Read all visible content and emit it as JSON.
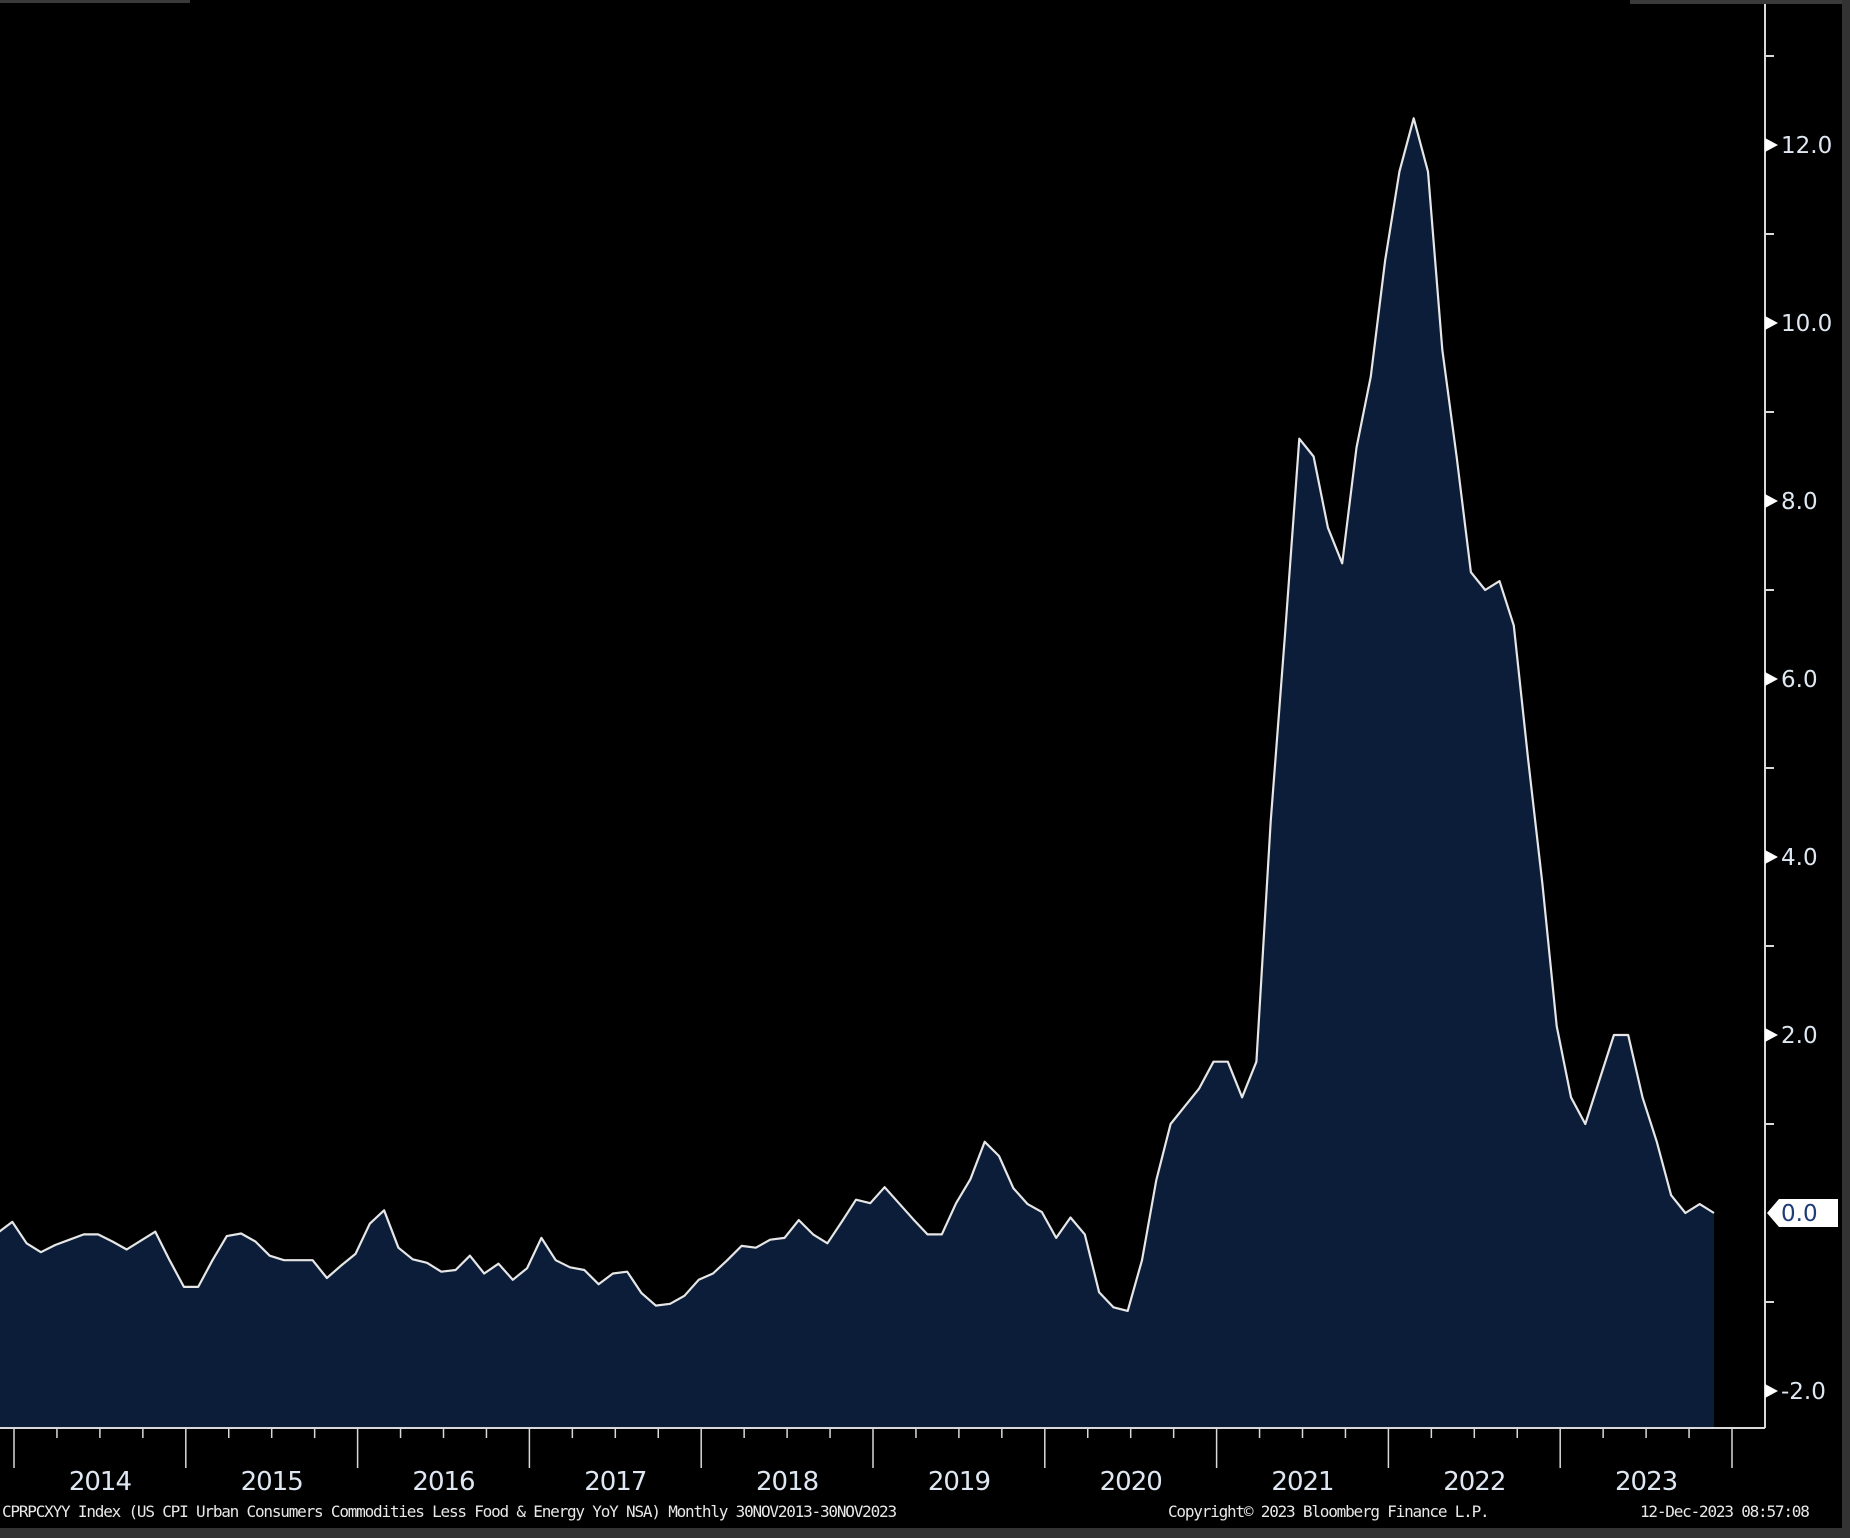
{
  "chart_data": {
    "type": "area",
    "frequency": "monthly",
    "x_start": "2013-11",
    "x_end": "2023-11",
    "x_tick_labels": [
      "2014",
      "2015",
      "2016",
      "2017",
      "2018",
      "2019",
      "2020",
      "2021",
      "2022",
      "2023"
    ],
    "y_tick_labels": [
      "-2.0",
      "0.0",
      "2.0",
      "4.0",
      "6.0",
      "8.0",
      "10.0",
      "12.0"
    ],
    "ylim": [
      -2.5,
      14
    ],
    "y_axis_side": "right",
    "grid": false,
    "last_value_label": "0.0",
    "values": [
      -0.22,
      -0.1,
      -0.34,
      -0.44,
      -0.36,
      -0.3,
      -0.24,
      -0.24,
      -0.32,
      -0.41,
      -0.31,
      -0.21,
      -0.53,
      -0.83,
      -0.83,
      -0.53,
      -0.26,
      -0.23,
      -0.32,
      -0.48,
      -0.53,
      -0.53,
      -0.53,
      -0.73,
      -0.59,
      -0.46,
      -0.12,
      0.03,
      -0.39,
      -0.52,
      -0.56,
      -0.66,
      -0.64,
      -0.48,
      -0.68,
      -0.57,
      -0.75,
      -0.62,
      -0.28,
      -0.53,
      -0.61,
      -0.64,
      -0.8,
      -0.68,
      -0.66,
      -0.9,
      -1.04,
      -1.02,
      -0.93,
      -0.75,
      -0.68,
      -0.53,
      -0.37,
      -0.39,
      -0.3,
      -0.28,
      -0.08,
      -0.24,
      -0.34,
      -0.1,
      0.15,
      0.11,
      0.29,
      0.11,
      -0.07,
      -0.24,
      -0.24,
      0.11,
      0.38,
      0.8,
      0.64,
      0.28,
      0.1,
      0.01,
      -0.28,
      -0.05,
      -0.24,
      -0.89,
      -1.06,
      -1.1,
      -0.53,
      0.37,
      1.0,
      1.2,
      1.4,
      1.7,
      1.7,
      1.3,
      1.7,
      4.4,
      6.5,
      8.7,
      8.5,
      7.7,
      7.3,
      8.6,
      9.4,
      10.7,
      11.7,
      12.3,
      11.7,
      9.7,
      8.5,
      7.2,
      7.0,
      7.1,
      6.6,
      5.1,
      3.7,
      2.1,
      1.3,
      1.0,
      1.5,
      2.0,
      2.0,
      1.3,
      0.8,
      0.2,
      0.0,
      0.1,
      0.0
    ],
    "colors": {
      "fill": "#0b1d38",
      "line": "#e6e6e6",
      "axis": "#d9d9d9",
      "tick_label": "#dfe8f2",
      "background": "#000000"
    }
  },
  "footer": {
    "security": "CPRPCXYY Index (US CPI Urban Consumers Commodities Less Food & Energy YoY NSA)  Monthly 30NOV2013-30NOV2023",
    "copyright": "Copyright© 2023 Bloomberg Finance L.P.",
    "timestamp": "12-Dec-2023 08:57:08"
  }
}
